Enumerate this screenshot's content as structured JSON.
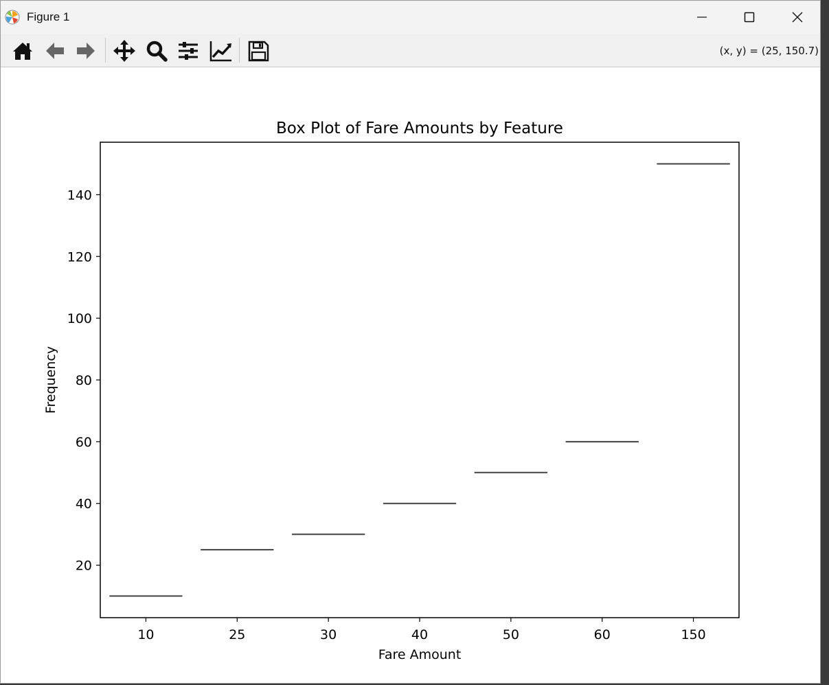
{
  "window": {
    "title": "Figure 1",
    "controls": {
      "minimize": "minimize",
      "maximize": "maximize",
      "close": "close"
    }
  },
  "toolbar": {
    "buttons": [
      {
        "name": "home",
        "icon": "home-icon"
      },
      {
        "name": "back",
        "icon": "arrow-left-icon"
      },
      {
        "name": "forward",
        "icon": "arrow-right-icon"
      },
      {
        "name": "pan",
        "icon": "move-icon"
      },
      {
        "name": "zoom",
        "icon": "magnifier-icon"
      },
      {
        "name": "configure-subplots",
        "icon": "sliders-icon"
      },
      {
        "name": "edit-axis",
        "icon": "line-chart-icon"
      },
      {
        "name": "save",
        "icon": "floppy-disk-icon"
      }
    ],
    "coordinates": "(x, y) = (25, 150.7)"
  },
  "chart_data": {
    "type": "box",
    "title": "Box Plot of Fare Amounts by Feature",
    "xlabel": "Fare Amount",
    "ylabel": "Frequency",
    "categories": [
      "10",
      "25",
      "30",
      "40",
      "50",
      "60",
      "150"
    ],
    "values": [
      10,
      25,
      30,
      40,
      50,
      60,
      150
    ],
    "ylim": [
      3,
      157
    ],
    "yticks": [
      20,
      40,
      60,
      80,
      100,
      120,
      140
    ],
    "grid": false,
    "line_color": "#404040"
  }
}
